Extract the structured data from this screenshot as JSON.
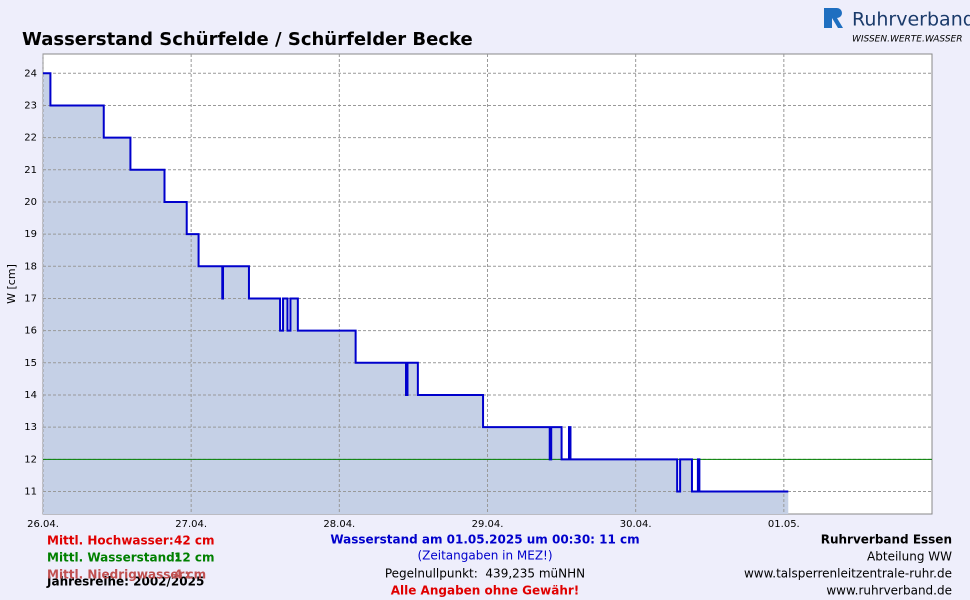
{
  "chart_data": {
    "type": "line",
    "title": "Wasserstand Schürfelde / Schürfelder Becke",
    "y_label": "W [cm]",
    "x": [
      0,
      0.05,
      0.05,
      0.41,
      0.41,
      0.59,
      0.59,
      0.82,
      0.82,
      0.97,
      0.97,
      1.05,
      1.05,
      1.21,
      1.21,
      1.215,
      1.215,
      1.39,
      1.39,
      1.6,
      1.6,
      1.62,
      1.62,
      1.65,
      1.65,
      1.67,
      1.67,
      1.72,
      1.72,
      2.11,
      2.11,
      2.45,
      2.45,
      2.46,
      2.46,
      2.53,
      2.53,
      2.97,
      2.97,
      3.42,
      3.42,
      3.43,
      3.43,
      3.5,
      3.5,
      3.55,
      3.55,
      3.56,
      3.56,
      4.28,
      4.28,
      4.3,
      4.3,
      4.38,
      4.38,
      4.42,
      4.42,
      4.43,
      4.43,
      5.03
    ],
    "series": [
      {
        "color": "#0000cc",
        "fill": "#c5d0e6",
        "values": [
          24,
          24,
          23,
          23,
          22,
          22,
          21,
          21,
          20,
          20,
          19,
          19,
          18,
          18,
          17,
          17,
          18,
          18,
          17,
          17,
          16,
          16,
          17,
          17,
          16,
          16,
          17,
          17,
          16,
          16,
          15,
          15,
          14,
          14,
          15,
          15,
          14,
          14,
          13,
          13,
          12,
          12,
          13,
          13,
          12,
          12,
          13,
          13,
          12,
          12,
          11,
          11,
          12,
          12,
          11,
          11,
          12,
          12,
          11,
          11
        ]
      }
    ],
    "mean_line": {
      "value": 12,
      "color": "#008000"
    },
    "xlim": [
      0,
      6
    ],
    "ylim": [
      10.3,
      24.6
    ],
    "xticks": [
      {
        "value": 0,
        "label": "26.04."
      },
      {
        "value": 1,
        "label": "27.04."
      },
      {
        "value": 2,
        "label": "28.04."
      },
      {
        "value": 3,
        "label": "29.04."
      },
      {
        "value": 4,
        "label": "30.04."
      },
      {
        "value": 5,
        "label": "01.05."
      }
    ],
    "yticks": [
      11,
      12,
      13,
      14,
      15,
      16,
      17,
      18,
      19,
      20,
      21,
      22,
      23,
      24
    ],
    "grid": true
  },
  "logo": {
    "name": "Ruhrverband",
    "slogan": "WISSEN.WERTE.WASSER"
  },
  "footer": {
    "stats": [
      {
        "label": "Mittl. Hochwasser:",
        "value": "42 cm",
        "color": "#e00000"
      },
      {
        "label": "Mittl. Wasserstand:",
        "value": "12 cm",
        "color": "#008000"
      },
      {
        "label": "Mittl. Niedrigwasser:",
        "value": "4 cm",
        "color": "#c05050"
      }
    ],
    "series_years": "Jahresreihe: 2002/2025",
    "current": "Wasserstand am 01.05.2025 um 00:30: 11 cm",
    "timezone": "(Zeitangaben in MEZ!)",
    "gauge_zero": "Pegelnullpunkt:  439,235 müNHN",
    "disclaimer": "Alle Angaben ohne Gewähr!",
    "org": [
      "Ruhrverband Essen",
      "Abteilung WW",
      "www.talsperrenleitzentrale-ruhr.de",
      "www.ruhrverband.de"
    ]
  }
}
